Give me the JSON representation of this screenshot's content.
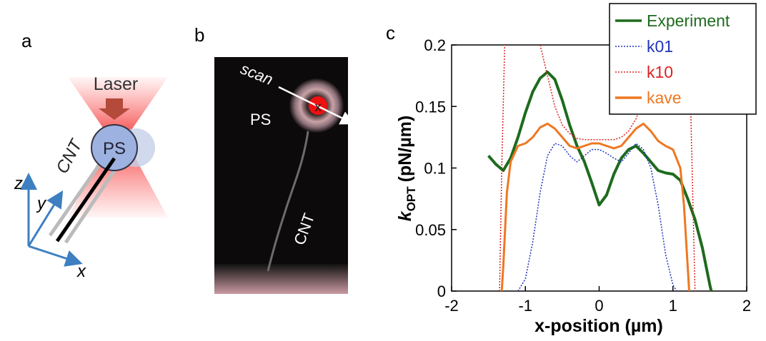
{
  "panel_labels": [
    "a",
    "b",
    "c"
  ],
  "diagram_a": {
    "laser": "Laser",
    "ps": "PS",
    "cnt": "CNT",
    "axis_z": "z",
    "axis_y": "y",
    "axis_x": "x"
  },
  "photo_b": {
    "scan": "scan",
    "marker": "x",
    "ps": "PS",
    "cnt": "CNT"
  },
  "chart_data": {
    "type": "line",
    "xlabel": "x-position (µm)",
    "ylabel": {
      "main": "k",
      "sub": "OPT",
      "unit": "(pN/µm)"
    },
    "xlim": [
      -2,
      2
    ],
    "xticks": [
      -2,
      -1,
      0,
      1,
      2
    ],
    "ylim": [
      0,
      0.2
    ],
    "yticks": [
      0,
      0.05,
      0.1,
      0.15,
      0.2
    ],
    "legend": "upper right",
    "series": [
      {
        "name": "Experiment",
        "color": "#1e6b1e",
        "style": "solid",
        "x": [
          -1.5,
          -1.4,
          -1.3,
          -1.2,
          -1.1,
          -1.0,
          -0.9,
          -0.8,
          -0.7,
          -0.6,
          -0.5,
          -0.4,
          -0.3,
          -0.2,
          -0.1,
          0,
          0.1,
          0.2,
          0.3,
          0.4,
          0.5,
          0.6,
          0.7,
          0.8,
          0.9,
          1.0,
          1.1,
          1.2,
          1.3,
          1.4,
          1.5,
          1.52
        ],
        "values": [
          0.11,
          0.103,
          0.098,
          0.108,
          0.125,
          0.145,
          0.162,
          0.173,
          0.178,
          0.172,
          0.155,
          0.135,
          0.118,
          0.105,
          0.088,
          0.07,
          0.078,
          0.095,
          0.108,
          0.115,
          0.118,
          0.112,
          0.105,
          0.098,
          0.096,
          0.095,
          0.09,
          0.075,
          0.058,
          0.035,
          0.005,
          0
        ]
      },
      {
        "name": "k01",
        "color": "#2233bb",
        "style": "dotted",
        "x": [
          -1.1,
          -1.0,
          -0.9,
          -0.8,
          -0.7,
          -0.6,
          -0.5,
          -0.4,
          -0.3,
          -0.2,
          -0.1,
          0,
          0.1,
          0.2,
          0.3,
          0.4,
          0.5,
          0.6,
          0.7,
          0.8,
          0.9,
          1.0,
          1.05
        ],
        "values": [
          0,
          0.01,
          0.04,
          0.08,
          0.11,
          0.12,
          0.118,
          0.11,
          0.105,
          0.11,
          0.115,
          0.115,
          0.112,
          0.108,
          0.105,
          0.112,
          0.12,
          0.115,
          0.1,
          0.07,
          0.03,
          0.005,
          0
        ]
      },
      {
        "name": "k10",
        "color": "#dd2222",
        "style": "dotted",
        "x": [
          -1.35,
          -1.32,
          -1.28,
          -1.0,
          -0.8,
          -0.7,
          -0.6,
          -0.5,
          -0.4,
          -0.3,
          -0.2,
          0,
          0.2,
          0.3,
          0.4,
          0.5,
          0.6,
          0.7,
          0.78,
          1.0,
          1.22,
          1.26,
          1.3
        ],
        "values": [
          0,
          0.1,
          0.2,
          null,
          0.2,
          0.175,
          0.15,
          0.135,
          0.128,
          0.124,
          0.123,
          0.123,
          0.123,
          0.125,
          0.13,
          0.14,
          0.155,
          0.18,
          0.2,
          null,
          0.2,
          0.1,
          0
        ]
      },
      {
        "name": "kave",
        "color": "#ee7722",
        "style": "solid",
        "x": [
          -1.32,
          -1.3,
          -1.25,
          -1.2,
          -1.1,
          -1.0,
          -0.9,
          -0.8,
          -0.7,
          -0.6,
          -0.5,
          -0.4,
          -0.3,
          -0.2,
          -0.1,
          0,
          0.1,
          0.2,
          0.3,
          0.4,
          0.5,
          0.6,
          0.7,
          0.8,
          0.9,
          1.0,
          1.1,
          1.15,
          1.2,
          1.22
        ],
        "values": [
          0,
          0.02,
          0.08,
          0.105,
          0.118,
          0.12,
          0.125,
          0.133,
          0.136,
          0.132,
          0.125,
          0.118,
          0.116,
          0.118,
          0.12,
          0.12,
          0.118,
          0.116,
          0.118,
          0.125,
          0.132,
          0.136,
          0.13,
          0.122,
          0.118,
          0.115,
          0.1,
          0.07,
          0.02,
          0
        ]
      }
    ]
  }
}
